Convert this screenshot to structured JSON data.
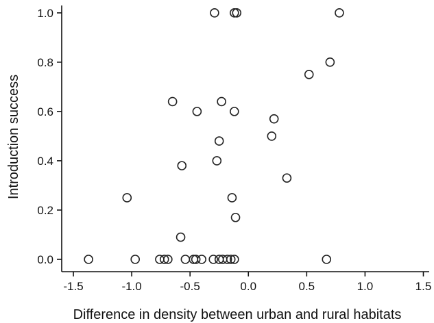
{
  "chart_data": {
    "type": "scatter",
    "title": "",
    "xlabel": "Difference in density between urban and rural habitats",
    "ylabel": "Introduction success",
    "xlim": [
      -1.6,
      1.55
    ],
    "ylim": [
      -0.05,
      1.03
    ],
    "xticks": [
      -1.5,
      -1.0,
      -0.5,
      0.0,
      0.5,
      1.0,
      1.5
    ],
    "xtick_labels": [
      "-1.5",
      "-1.0",
      "-0.5",
      "0.0",
      "0.5",
      "1.0",
      "1.5"
    ],
    "yticks": [
      0.0,
      0.2,
      0.4,
      0.6,
      0.8,
      1.0
    ],
    "ytick_labels": [
      "0.0",
      "0.2",
      "0.4",
      "0.6",
      "0.8",
      "1.0"
    ],
    "grid": false,
    "marker": "open-circle",
    "points": [
      {
        "x": -0.29,
        "y": 1.0
      },
      {
        "x": -0.12,
        "y": 1.0
      },
      {
        "x": -0.1,
        "y": 1.0
      },
      {
        "x": 0.78,
        "y": 1.0
      },
      {
        "x": 0.7,
        "y": 0.8
      },
      {
        "x": 0.52,
        "y": 0.75
      },
      {
        "x": -0.65,
        "y": 0.64
      },
      {
        "x": -0.23,
        "y": 0.64
      },
      {
        "x": -0.44,
        "y": 0.6
      },
      {
        "x": -0.12,
        "y": 0.6
      },
      {
        "x": 0.22,
        "y": 0.57
      },
      {
        "x": 0.2,
        "y": 0.5
      },
      {
        "x": -0.25,
        "y": 0.48
      },
      {
        "x": -0.27,
        "y": 0.4
      },
      {
        "x": -0.57,
        "y": 0.38
      },
      {
        "x": 0.33,
        "y": 0.33
      },
      {
        "x": -1.04,
        "y": 0.25
      },
      {
        "x": -0.14,
        "y": 0.25
      },
      {
        "x": -0.11,
        "y": 0.17
      },
      {
        "x": -0.58,
        "y": 0.09
      },
      {
        "x": -1.37,
        "y": 0.0
      },
      {
        "x": -0.97,
        "y": 0.0
      },
      {
        "x": -0.76,
        "y": 0.0
      },
      {
        "x": -0.72,
        "y": 0.0
      },
      {
        "x": -0.69,
        "y": 0.0
      },
      {
        "x": -0.54,
        "y": 0.0
      },
      {
        "x": -0.47,
        "y": 0.0
      },
      {
        "x": -0.45,
        "y": 0.0
      },
      {
        "x": -0.4,
        "y": 0.0
      },
      {
        "x": -0.3,
        "y": 0.0
      },
      {
        "x": -0.25,
        "y": 0.0
      },
      {
        "x": -0.22,
        "y": 0.0
      },
      {
        "x": -0.18,
        "y": 0.0
      },
      {
        "x": -0.15,
        "y": 0.0
      },
      {
        "x": -0.12,
        "y": 0.0
      },
      {
        "x": 0.67,
        "y": 0.0
      }
    ]
  }
}
